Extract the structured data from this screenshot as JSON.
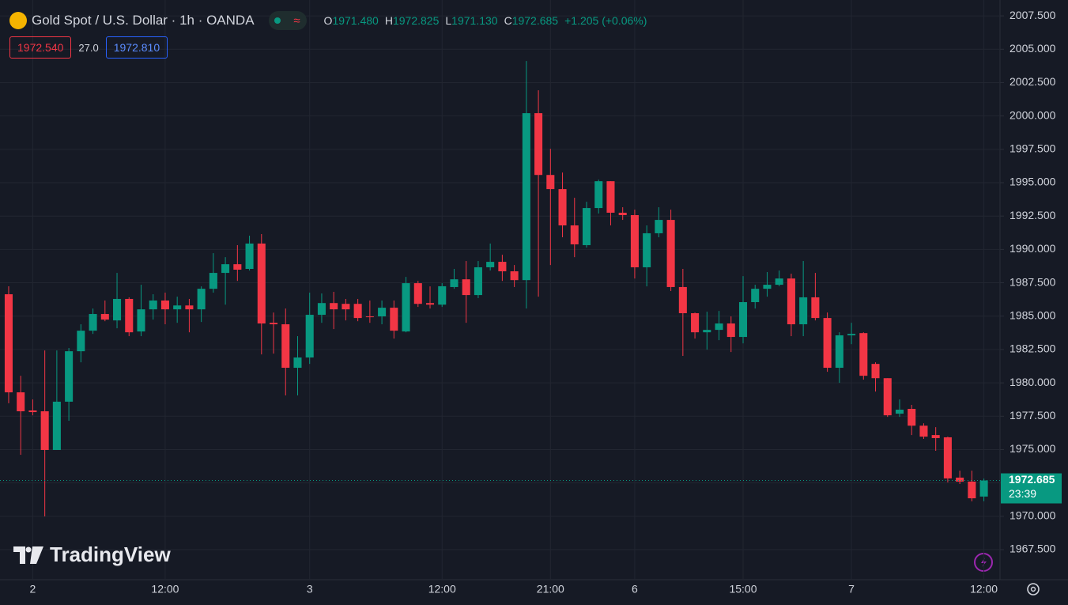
{
  "chart_data": {
    "type": "candlestick",
    "title": "Gold Spot / U.S. Dollar · 1h · OANDA",
    "ohlc_header": [
      {
        "label": "O",
        "value": "1971.480"
      },
      {
        "label": "H",
        "value": "1972.825"
      },
      {
        "label": "L",
        "value": "1971.130"
      },
      {
        "label": "C",
        "value": "1972.685"
      }
    ],
    "change": "+1.205 (+0.06%)",
    "bid": "1972.540",
    "spread": "27.0",
    "ask": "1972.810",
    "countdown": "23:39",
    "watermark": "TradingView",
    "up_color": "#089981",
    "down_color": "#f23645",
    "grid": true,
    "xlim": [
      -0.72,
      82.34
    ],
    "ylim": [
      1965.25,
      2008.69
    ],
    "xticks": [
      {
        "value": 2,
        "label": "2"
      },
      {
        "value": 13,
        "label": "12:00"
      },
      {
        "value": 25,
        "label": "3"
      },
      {
        "value": 36,
        "label": "12:00"
      },
      {
        "value": 45,
        "label": "21:00"
      },
      {
        "value": 52,
        "label": "6"
      },
      {
        "value": 61,
        "label": "15:00"
      },
      {
        "value": 70,
        "label": "7"
      },
      {
        "value": 81,
        "label": "12:00"
      }
    ],
    "yticks": [
      {
        "value": 1967.5,
        "label": "1967.500"
      },
      {
        "value": 1970,
        "label": "1970.000"
      },
      {
        "value": 1972.5,
        "label": "1972.500"
      },
      {
        "value": 1975,
        "label": "1975.000"
      },
      {
        "value": 1977.5,
        "label": "1977.500"
      },
      {
        "value": 1980,
        "label": "1980.000"
      },
      {
        "value": 1982.5,
        "label": "1982.500"
      },
      {
        "value": 1985,
        "label": "1985.000"
      },
      {
        "value": 1987.5,
        "label": "1987.500"
      },
      {
        "value": 1990,
        "label": "1990.000"
      },
      {
        "value": 1992.5,
        "label": "1992.500"
      },
      {
        "value": 1995,
        "label": "1995.000"
      },
      {
        "value": 1997.5,
        "label": "1997.500"
      },
      {
        "value": 2000,
        "label": "2000.000"
      },
      {
        "value": 2002.5,
        "label": "2002.500"
      },
      {
        "value": 2005,
        "label": "2005.000"
      },
      {
        "value": 2007.5,
        "label": "2007.500"
      }
    ],
    "open": [
      1986.64,
      1979.29,
      1977.93,
      1977.87,
      1974.97,
      1978.59,
      1982.37,
      1983.91,
      1985.16,
      1984.68,
      1986.29,
      1983.85,
      1985.51,
      1986.17,
      1985.51,
      1985.8,
      1985.51,
      1987.05,
      1988.24,
      1988.89,
      1988.54,
      1990.44,
      1984.5,
      1984.39,
      1981.13,
      1981.9,
      1985.1,
      1985.98,
      1985.92,
      1985.92,
      1984.98,
      1984.98,
      1985.63,
      1983.85,
      1987.47,
      1985.98,
      1985.86,
      1987.18,
      1987.76,
      1986.58,
      1988.66,
      1989.07,
      1988.36,
      1987.7,
      2000.21,
      1995.58,
      1994.52,
      1991.8,
      1990.32,
      1993.1,
      1995.11,
      1992.75,
      1992.57,
      1988.66,
      1991.21,
      1992.21,
      1987.18,
      1985.22,
      1983.79,
      1983.97,
      1984.45,
      1983.44,
      1986.05,
      1987.05,
      1987.35,
      1987.82,
      1984.39,
      1986.41,
      1984.86,
      1981.13,
      1983.56,
      1983.73,
      1981.42,
      1980.35,
      1977.69,
      1978.05,
      1976.79,
      1976.09,
      1975.92,
      1972.9,
      1972.6,
      1971.48
    ],
    "high": [
      1987.24,
      1980.53,
      1978.76,
      1982.43,
      1982.43,
      1982.61,
      1984.39,
      1985.57,
      1986.17,
      1988.24,
      1986.41,
      1987.35,
      1986.64,
      1986.76,
      1986.46,
      1986.29,
      1987.23,
      1989.72,
      1989.42,
      1990.32,
      1991.03,
      1991.15,
      1985.27,
      1985.57,
      1983.5,
      1986.76,
      1986.7,
      1986.82,
      1986.29,
      1986.29,
      1986.17,
      1986.17,
      1986.17,
      1987.94,
      1987.64,
      1987.23,
      1987.47,
      1988.54,
      1989.13,
      1989.13,
      1990.44,
      1989.6,
      1988.83,
      2004.12,
      2001.93,
      1997.54,
      1995.76,
      1993.87,
      1993.57,
      1995.23,
      1995.11,
      1993.16,
      1992.98,
      1991.8,
      1993.16,
      1992.98,
      1988.54,
      1985.27,
      1985.33,
      1985.39,
      1984.98,
      1988.0,
      1987.35,
      1988.3,
      1988.42,
      1988.18,
      1989.13,
      1988.24,
      1985.27,
      1983.79,
      1984.5,
      1983.79,
      1981.54,
      1980.35,
      1978.76,
      1978.35,
      1976.97,
      1976.68,
      1975.97,
      1973.42,
      1973.42,
      1972.825
    ],
    "low": [
      1978.47,
      1974.61,
      1977.57,
      1969.99,
      1974.97,
      1977.16,
      1981.54,
      1983.67,
      1984.62,
      1984.09,
      1983.5,
      1983.5,
      1984.74,
      1984.39,
      1984.5,
      1983.79,
      1984.56,
      1986.76,
      1985.86,
      1987.64,
      1988.42,
      1982.13,
      1982.19,
      1979.06,
      1979.06,
      1981.42,
      1984.5,
      1984.03,
      1984.68,
      1984.62,
      1984.5,
      1984.39,
      1983.32,
      1983.79,
      1985.69,
      1985.57,
      1985.69,
      1987.05,
      1984.5,
      1986.35,
      1988.42,
      1987.64,
      1987.18,
      1985.57,
      1986.46,
      1988.83,
      1990.91,
      1989.42,
      1990.14,
      1992.69,
      1991.8,
      1992.21,
      1987.82,
      1987.23,
      1990.91,
      1986.88,
      1982.02,
      1983.32,
      1982.49,
      1983.2,
      1982.31,
      1982.96,
      1985.57,
      1986.46,
      1987.24,
      1983.5,
      1983.5,
      1984.68,
      1980.83,
      1980.0,
      1982.9,
      1980.24,
      1979.35,
      1977.45,
      1977.45,
      1976.09,
      1975.8,
      1974.91,
      1972.54,
      1972.42,
      1971.12,
      1971.13
    ],
    "close": [
      1979.29,
      1977.87,
      1977.81,
      1974.97,
      1978.59,
      1982.37,
      1983.91,
      1985.16,
      1984.74,
      1986.29,
      1983.79,
      1985.51,
      1986.17,
      1985.51,
      1985.8,
      1985.51,
      1987.05,
      1988.24,
      1988.89,
      1988.48,
      1990.44,
      1984.45,
      1984.39,
      1981.13,
      1981.9,
      1985.1,
      1985.98,
      1985.51,
      1985.51,
      1984.86,
      1984.92,
      1985.63,
      1983.91,
      1987.47,
      1985.92,
      1985.86,
      1987.24,
      1987.76,
      1986.58,
      1988.66,
      1989.07,
      1988.36,
      1987.7,
      2000.21,
      1995.58,
      1994.52,
      1991.8,
      1990.38,
      1993.1,
      1995.11,
      1992.75,
      1992.57,
      1988.66,
      1991.21,
      1992.21,
      1987.18,
      1985.22,
      1983.79,
      1983.97,
      1984.45,
      1983.44,
      1986.05,
      1987.05,
      1987.35,
      1987.82,
      1984.39,
      1986.41,
      1984.86,
      1981.13,
      1983.56,
      1983.67,
      1980.53,
      1980.35,
      1977.57,
      1977.99,
      1976.79,
      1975.97,
      1975.86,
      1972.84,
      1972.6,
      1971.35,
      1972.685
    ]
  }
}
